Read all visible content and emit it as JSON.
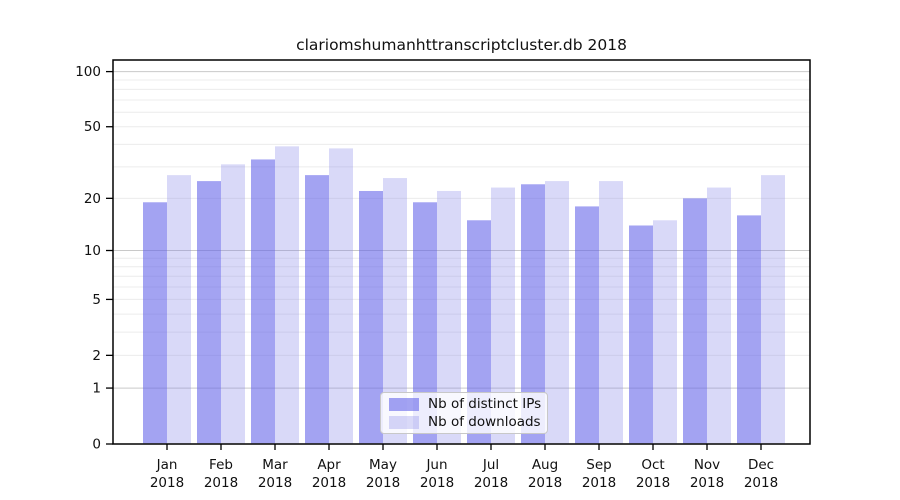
{
  "title": "clariomshumanhttranscriptcluster.db 2018",
  "chart_data": {
    "type": "bar",
    "title": "clariomshumanhttranscriptcluster.db 2018",
    "categories": [
      "Jan 2018",
      "Feb 2018",
      "Mar 2018",
      "Apr 2018",
      "May 2018",
      "Jun 2018",
      "Jul 2018",
      "Aug 2018",
      "Sep 2018",
      "Oct 2018",
      "Nov 2018",
      "Dec 2018"
    ],
    "series": [
      {
        "name": "Nb of distinct IPs",
        "values": [
          19,
          25,
          33,
          27,
          22,
          19,
          15,
          24,
          18,
          14,
          20,
          16
        ]
      },
      {
        "name": "Nb of downloads",
        "values": [
          27,
          31,
          39,
          38,
          26,
          22,
          23,
          25,
          25,
          15,
          23,
          27
        ]
      }
    ],
    "xlabel": "",
    "ylabel": "",
    "yscale": "log1p",
    "ylim": [
      0,
      116
    ],
    "yticks": [
      0,
      1,
      2,
      5,
      10,
      20,
      50,
      100
    ],
    "minor_gridlines": [
      2,
      3,
      4,
      5,
      6,
      7,
      8,
      9,
      20,
      30,
      40,
      50,
      60,
      70,
      80,
      90
    ],
    "major_gridlines": [
      1,
      10,
      100
    ],
    "grid": "on",
    "legend_position": "lower center"
  },
  "legend": {
    "items": [
      {
        "label": "Nb of distinct IPs",
        "series_key": "ips"
      },
      {
        "label": "Nb of downloads",
        "series_key": "downloads"
      }
    ]
  },
  "colors": {
    "ips_bar": "rgba(102,102,234,0.6)",
    "downloads_bar": "rgba(128,128,232,0.3)",
    "grid_minor": "#ececec",
    "grid_major": "#c9c9c9",
    "spine": "#000000",
    "tick": "#000000",
    "text": "#111111",
    "legend_border": "#c8c8c8",
    "legend_bg": "rgba(255,255,255,0.8)"
  }
}
